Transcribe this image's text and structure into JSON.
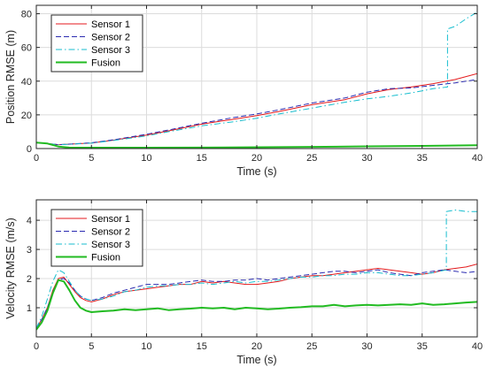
{
  "chart_data": [
    {
      "type": "line",
      "xlabel": "Time (s)",
      "ylabel": "Position RMSE (m)",
      "xlim": [
        0,
        40
      ],
      "ylim": [
        0,
        85
      ],
      "xticks": [
        0,
        5,
        10,
        15,
        20,
        25,
        30,
        35,
        40
      ],
      "yticks": [
        0,
        20,
        40,
        60,
        80
      ],
      "grid": true,
      "legend_position": "top-left",
      "series": [
        {
          "name": "Sensor 1",
          "color": "#e41a1c",
          "style": "solid",
          "x": [
            0,
            1,
            2,
            3,
            5,
            7,
            10,
            12,
            15,
            18,
            20,
            22,
            25,
            28,
            30,
            32,
            34,
            36,
            38,
            40
          ],
          "y": [
            3.5,
            3,
            2.3,
            2.6,
            3.3,
            5,
            8,
            10.5,
            14.5,
            17.5,
            19.5,
            22,
            26,
            29,
            32.5,
            35,
            36.5,
            38.5,
            41,
            44.5
          ]
        },
        {
          "name": "Sensor 2",
          "color": "#2b2bb0",
          "style": "dashed",
          "x": [
            0,
            1,
            2,
            3,
            5,
            7,
            10,
            12,
            15,
            18,
            20,
            22,
            25,
            28,
            30,
            32,
            34,
            36,
            38,
            40
          ],
          "y": [
            3.5,
            3,
            2.3,
            2.6,
            3.4,
            5.2,
            8.5,
            11,
            15,
            18.5,
            20.5,
            23,
            27,
            30,
            33.5,
            35.5,
            36,
            37.5,
            39,
            41
          ]
        },
        {
          "name": "Sensor 3",
          "color": "#17becf",
          "style": "dashdot",
          "x": [
            0,
            1,
            2,
            3,
            5,
            7,
            10,
            12,
            15,
            18,
            20,
            22,
            25,
            28,
            30,
            32,
            34,
            36,
            37.3,
            37.3,
            38,
            39,
            40
          ],
          "y": [
            3.5,
            3,
            2.3,
            2.5,
            3.2,
            4.8,
            7.5,
            10,
            13.5,
            16,
            18,
            20.5,
            24,
            27.5,
            29.5,
            31,
            33,
            35.5,
            36.5,
            71,
            72.5,
            77,
            81
          ]
        },
        {
          "name": "Fusion",
          "color": "#22bb22",
          "style": "solid",
          "x": [
            0,
            1,
            2,
            3,
            5,
            10,
            15,
            20,
            25,
            30,
            35,
            40
          ],
          "y": [
            3.5,
            3,
            1.2,
            0.6,
            0.5,
            0.5,
            0.6,
            0.8,
            1.0,
            1.3,
            1.6,
            2.0
          ]
        }
      ]
    },
    {
      "type": "line",
      "xlabel": "Time (s)",
      "ylabel": "Velocity RMSE (m/s)",
      "xlim": [
        0,
        40
      ],
      "ylim": [
        0,
        4.7
      ],
      "xticks": [
        0,
        5,
        10,
        15,
        20,
        25,
        30,
        35,
        40
      ],
      "yticks": [
        1,
        2,
        3,
        4
      ],
      "grid": true,
      "legend_position": "top-left",
      "series": [
        {
          "name": "Sensor 1",
          "color": "#e41a1c",
          "style": "solid",
          "x": [
            0,
            0.5,
            1,
            1.5,
            2,
            2.5,
            3,
            3.5,
            4,
            4.5,
            5,
            6,
            7,
            8,
            9,
            10,
            11,
            12,
            13,
            14,
            15,
            16,
            17,
            18,
            19,
            20,
            21,
            22,
            23,
            24,
            25,
            26,
            27,
            28,
            29,
            30,
            31,
            32,
            33,
            34,
            35,
            36,
            37,
            38,
            39,
            40
          ],
          "y": [
            0.3,
            0.6,
            1.0,
            1.6,
            2.0,
            2.05,
            1.8,
            1.55,
            1.35,
            1.25,
            1.2,
            1.3,
            1.45,
            1.55,
            1.6,
            1.65,
            1.7,
            1.75,
            1.8,
            1.8,
            1.9,
            1.85,
            1.9,
            1.85,
            1.8,
            1.8,
            1.85,
            1.9,
            2.0,
            2.05,
            2.1,
            2.1,
            2.15,
            2.2,
            2.25,
            2.3,
            2.35,
            2.3,
            2.25,
            2.2,
            2.15,
            2.2,
            2.3,
            2.35,
            2.4,
            2.5
          ]
        },
        {
          "name": "Sensor 2",
          "color": "#2b2bb0",
          "style": "dashed",
          "x": [
            0,
            0.5,
            1,
            1.5,
            2,
            2.5,
            3,
            3.5,
            4,
            4.5,
            5,
            6,
            7,
            8,
            9,
            10,
            11,
            12,
            13,
            14,
            15,
            16,
            17,
            18,
            19,
            20,
            21,
            22,
            23,
            24,
            25,
            26,
            27,
            28,
            29,
            30,
            31,
            32,
            33,
            34,
            35,
            36,
            37,
            38,
            39,
            40
          ],
          "y": [
            0.3,
            0.6,
            1.0,
            1.55,
            1.95,
            2.0,
            1.85,
            1.6,
            1.4,
            1.3,
            1.25,
            1.35,
            1.5,
            1.6,
            1.7,
            1.8,
            1.8,
            1.8,
            1.85,
            1.9,
            1.95,
            1.9,
            1.9,
            1.95,
            1.95,
            2.0,
            1.95,
            2.0,
            2.05,
            2.1,
            2.15,
            2.2,
            2.25,
            2.25,
            2.2,
            2.25,
            2.3,
            2.2,
            2.15,
            2.1,
            2.2,
            2.25,
            2.3,
            2.25,
            2.2,
            2.25
          ]
        },
        {
          "name": "Sensor 3",
          "color": "#17becf",
          "style": "dashdot",
          "x": [
            0,
            0.5,
            1,
            1.5,
            2,
            2.5,
            3,
            3.5,
            4,
            4.5,
            5,
            6,
            7,
            8,
            9,
            10,
            11,
            12,
            13,
            14,
            15,
            16,
            17,
            18,
            19,
            20,
            21,
            22,
            23,
            24,
            25,
            26,
            27,
            28,
            29,
            30,
            31,
            32,
            33,
            34,
            35,
            36,
            37.2,
            37.2,
            38,
            39,
            40
          ],
          "y": [
            0.3,
            0.7,
            1.3,
            1.9,
            2.3,
            2.2,
            1.9,
            1.6,
            1.4,
            1.3,
            1.25,
            1.3,
            1.4,
            1.55,
            1.6,
            1.7,
            1.75,
            1.75,
            1.8,
            1.8,
            1.85,
            1.8,
            1.85,
            1.9,
            1.85,
            1.9,
            1.9,
            1.95,
            2.0,
            2.05,
            2.05,
            2.1,
            2.1,
            2.15,
            2.15,
            2.2,
            2.2,
            2.15,
            2.1,
            2.1,
            2.15,
            2.2,
            2.3,
            4.3,
            4.35,
            4.3,
            4.3
          ]
        },
        {
          "name": "Fusion",
          "color": "#22bb22",
          "style": "solid",
          "x": [
            0,
            0.5,
            1,
            1.5,
            2,
            2.5,
            3,
            3.5,
            4,
            4.5,
            5,
            6,
            7,
            8,
            9,
            10,
            11,
            12,
            13,
            14,
            15,
            16,
            17,
            18,
            19,
            20,
            21,
            22,
            23,
            24,
            25,
            26,
            27,
            28,
            29,
            30,
            31,
            32,
            33,
            34,
            35,
            36,
            37,
            38,
            39,
            40
          ],
          "y": [
            0.25,
            0.5,
            0.9,
            1.5,
            1.95,
            1.9,
            1.6,
            1.25,
            1.0,
            0.9,
            0.85,
            0.88,
            0.9,
            0.95,
            0.92,
            0.95,
            0.98,
            0.92,
            0.95,
            0.97,
            1.0,
            0.98,
            1.0,
            0.95,
            1.0,
            0.98,
            0.95,
            0.97,
            1.0,
            1.02,
            1.05,
            1.05,
            1.1,
            1.05,
            1.08,
            1.1,
            1.08,
            1.1,
            1.12,
            1.1,
            1.15,
            1.1,
            1.12,
            1.15,
            1.18,
            1.2
          ]
        }
      ]
    }
  ]
}
